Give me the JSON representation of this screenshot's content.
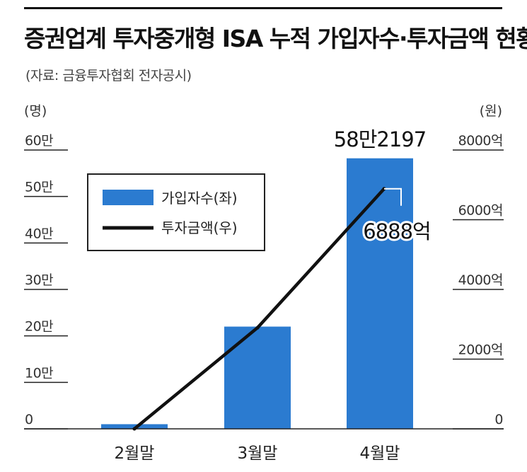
{
  "title": "증권업계 투자중개형 ISA 누적 가입자수·투자금액 현황",
  "source": "(자료: 금융투자협회 전자공시)",
  "colors": {
    "bar": "#2b7bd0",
    "line": "#111111",
    "axis": "#222222"
  },
  "chart_data": {
    "type": "bar",
    "categories": [
      "2월말",
      "3월말",
      "4월말"
    ],
    "series": [
      {
        "name": "가입자수(좌)",
        "type": "bar",
        "axis": "left",
        "values": [
          10000,
          220000,
          582197
        ]
      },
      {
        "name": "투자금액(우)",
        "type": "line",
        "axis": "right",
        "values": [
          0,
          2900,
          6888
        ]
      }
    ],
    "left_axis": {
      "unit": "(명)",
      "ylim": [
        0,
        600000
      ],
      "ticks": [
        0,
        100000,
        200000,
        300000,
        400000,
        500000,
        600000
      ],
      "tick_labels": [
        "0",
        "10만",
        "20만",
        "30만",
        "40만",
        "50만",
        "60만"
      ]
    },
    "right_axis": {
      "unit": "(원)",
      "ylim": [
        0,
        8000
      ],
      "ticks": [
        0,
        2000,
        4000,
        6000,
        8000
      ],
      "tick_labels": [
        "0",
        "2000억",
        "4000억",
        "6000억",
        "8000억"
      ]
    },
    "annotations": {
      "bar_label": "58만2197",
      "line_label": "6888억"
    },
    "legend_position": "top-left",
    "grid": false
  }
}
